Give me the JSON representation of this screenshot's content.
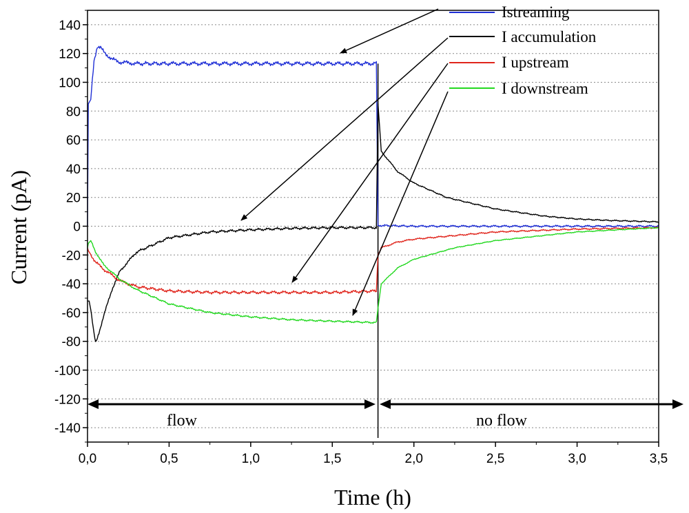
{
  "chart_data": {
    "type": "line",
    "title": "",
    "xlabel": "Time (h)",
    "ylabel": "Current (pA)",
    "xlim": [
      0,
      3.5
    ],
    "ylim": [
      -150,
      150
    ],
    "x_ticks": [
      0,
      0.5,
      1.0,
      1.5,
      2.0,
      2.5,
      3.0,
      3.5
    ],
    "x_tick_labels": [
      "0,0",
      "0,5",
      "1,0",
      "1,5",
      "2,0",
      "2,5",
      "3,0",
      "3,5"
    ],
    "y_ticks": [
      -140,
      -120,
      -100,
      -80,
      -60,
      -40,
      -20,
      0,
      20,
      40,
      60,
      80,
      100,
      120,
      140
    ],
    "y_tick_labels": [
      "-140",
      "-120",
      "-100",
      "-80",
      "-60",
      "-40",
      "-20",
      "0",
      "20",
      "40",
      "60",
      "80",
      "100",
      "120",
      "140"
    ],
    "grid": "horizontal-dotted",
    "legend_position": "top-right",
    "flow_stop_time": 1.78,
    "regions": [
      {
        "label": "flow",
        "x_start": 0,
        "x_end": 1.78
      },
      {
        "label": "no flow",
        "x_start": 1.78,
        "x_end": 3.5
      }
    ],
    "series": [
      {
        "name": "Istreaming",
        "color": "#1f2fd6",
        "x": [
          0,
          0.005,
          0.02,
          0.04,
          0.06,
          0.08,
          0.1,
          0.15,
          0.2,
          0.3,
          0.5,
          1.0,
          1.5,
          1.77,
          1.78,
          1.8,
          2.0,
          2.5,
          3.0,
          3.5
        ],
        "y": [
          0,
          85,
          88,
          115,
          125,
          124,
          121,
          116,
          114,
          113,
          113,
          113,
          113,
          113,
          0.5,
          0.5,
          0,
          0,
          0,
          0
        ]
      },
      {
        "name": "I accumulation",
        "color": "#000000",
        "x": [
          0,
          0.01,
          0.02,
          0.04,
          0.05,
          0.06,
          0.1,
          0.15,
          0.2,
          0.3,
          0.5,
          0.75,
          1.0,
          1.25,
          1.5,
          1.77,
          1.78,
          1.8,
          1.9,
          2.0,
          2.2,
          2.5,
          2.8,
          3.0,
          3.2,
          3.5
        ],
        "y": [
          -52,
          -52,
          -58,
          -75,
          -81,
          -78,
          -62,
          -44,
          -31,
          -18,
          -8,
          -4,
          -2.5,
          -1.5,
          -1,
          -1,
          85,
          52,
          38,
          30,
          20,
          12,
          7,
          5,
          4,
          3
        ]
      },
      {
        "name": "I upstream",
        "color": "#e0241b",
        "x": [
          0,
          0.005,
          0.05,
          0.1,
          0.2,
          0.3,
          0.5,
          0.75,
          1.0,
          1.5,
          1.77,
          1.78,
          1.8,
          1.9,
          2.0,
          2.5,
          3.0,
          3.5
        ],
        "y": [
          -15,
          -17,
          -25,
          -30,
          -38,
          -42,
          -45,
          -46,
          -46,
          -46,
          -45,
          -20,
          -15,
          -11,
          -9,
          -4,
          -2,
          -1
        ]
      },
      {
        "name": "I downstream",
        "color": "#22d81f",
        "x": [
          0,
          0.005,
          0.02,
          0.05,
          0.1,
          0.2,
          0.3,
          0.5,
          0.75,
          1.0,
          1.25,
          1.5,
          1.77,
          1.78,
          1.8,
          1.9,
          2.0,
          2.25,
          2.5,
          3.0,
          3.5
        ],
        "y": [
          -15,
          -12,
          -10,
          -18,
          -27,
          -37,
          -44,
          -54,
          -60,
          -63,
          -65,
          -66,
          -67,
          -57,
          -40,
          -29,
          -23,
          -15,
          -10,
          -4,
          -1
        ]
      }
    ]
  }
}
